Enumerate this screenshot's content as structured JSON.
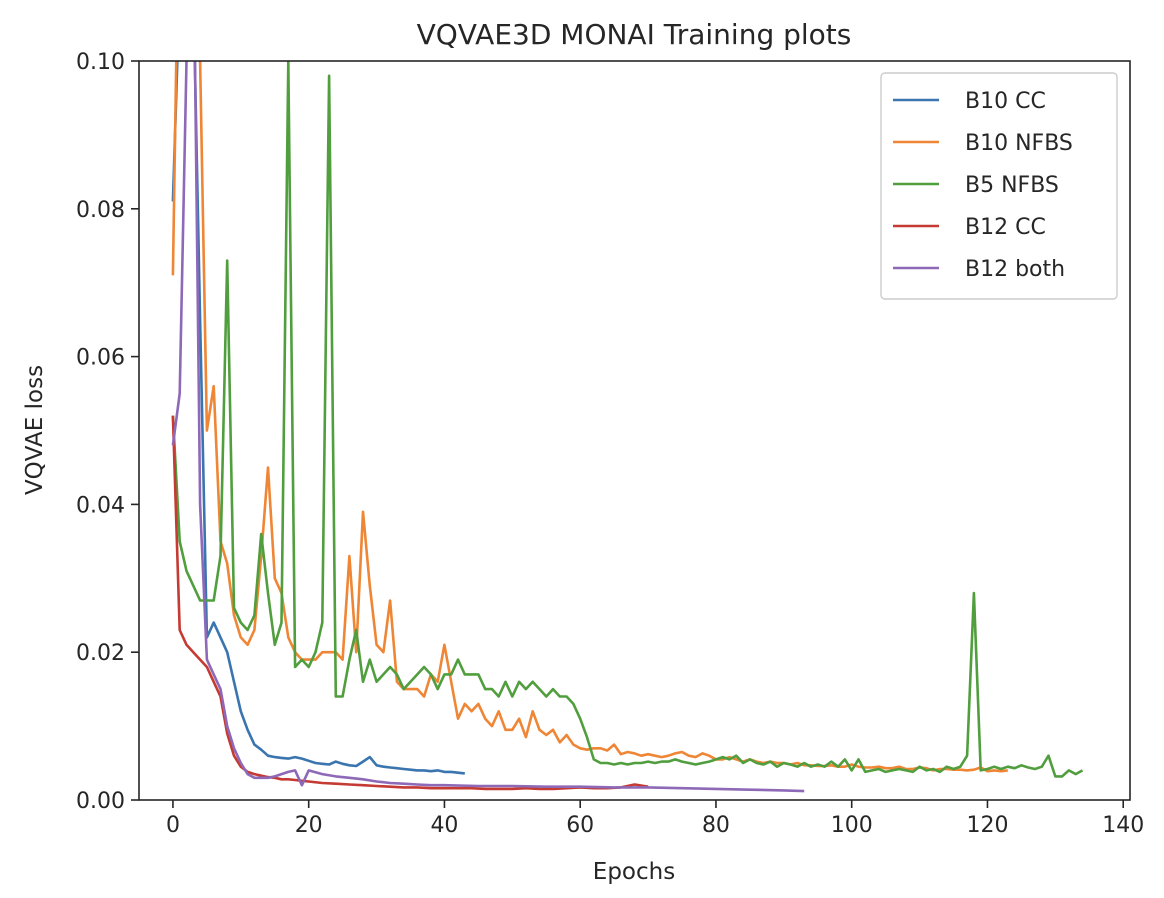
{
  "chart_data": {
    "type": "line",
    "title": "VQVAE3D MONAI Training plots",
    "xlabel": "Epochs",
    "ylabel": "VQVAE loss",
    "xlim": [
      -5,
      141
    ],
    "ylim": [
      0,
      0.1
    ],
    "xticks": [
      0,
      20,
      40,
      60,
      80,
      100,
      120,
      140
    ],
    "yticks": [
      0.0,
      0.02,
      0.04,
      0.06,
      0.08,
      0.1
    ],
    "ytick_labels": [
      "0.00",
      "0.02",
      "0.04",
      "0.06",
      "0.08",
      "0.10"
    ],
    "grid": false,
    "legend": "top-right",
    "series": [
      {
        "name": "B10 CC",
        "color": "#3a75af",
        "x": [
          0,
          1,
          2,
          3,
          4,
          5,
          6,
          7,
          8,
          9,
          10,
          11,
          12,
          13,
          14,
          15,
          16,
          17,
          18,
          19,
          20,
          21,
          22,
          23,
          24,
          25,
          26,
          27,
          28,
          29,
          30,
          31,
          32,
          33,
          34,
          35,
          36,
          37,
          38,
          39,
          40,
          41,
          42,
          43
        ],
        "y": [
          0.081,
          0.11,
          0.12,
          0.11,
          0.065,
          0.022,
          0.024,
          0.022,
          0.02,
          0.016,
          0.012,
          0.0095,
          0.0075,
          0.0068,
          0.006,
          0.0058,
          0.0057,
          0.0056,
          0.0058,
          0.0056,
          0.0053,
          0.005,
          0.0049,
          0.0048,
          0.0052,
          0.0049,
          0.0047,
          0.0046,
          0.0052,
          0.0058,
          0.0047,
          0.0045,
          0.0044,
          0.0043,
          0.0042,
          0.0041,
          0.004,
          0.004,
          0.0039,
          0.004,
          0.0038,
          0.0038,
          0.0037,
          0.0036
        ]
      },
      {
        "name": "B10 NFBS",
        "color": "#ef8636",
        "x": [
          0,
          1,
          2,
          3,
          4,
          5,
          6,
          7,
          8,
          9,
          10,
          11,
          12,
          13,
          14,
          15,
          16,
          17,
          18,
          19,
          20,
          21,
          22,
          23,
          24,
          25,
          26,
          27,
          28,
          29,
          30,
          31,
          32,
          33,
          34,
          35,
          36,
          37,
          38,
          39,
          40,
          41,
          42,
          43,
          44,
          45,
          46,
          47,
          48,
          49,
          50,
          51,
          52,
          53,
          54,
          55,
          56,
          57,
          58,
          59,
          60,
          61,
          62,
          63,
          64,
          65,
          66,
          67,
          68,
          69,
          70,
          71,
          72,
          73,
          74,
          75,
          76,
          77,
          78,
          79,
          80,
          81,
          82,
          83,
          84,
          85,
          86,
          87,
          88,
          89,
          90,
          91,
          92,
          93,
          94,
          95,
          96,
          97,
          98,
          99,
          100,
          101,
          102,
          103,
          104,
          105,
          106,
          107,
          108,
          109,
          110,
          111,
          112,
          113,
          114,
          115,
          116,
          117,
          118,
          119,
          120,
          121,
          122,
          123
        ],
        "y": [
          0.071,
          0.13,
          0.12,
          0.11,
          0.1,
          0.05,
          0.056,
          0.035,
          0.032,
          0.025,
          0.022,
          0.021,
          0.023,
          0.033,
          0.045,
          0.03,
          0.028,
          0.022,
          0.02,
          0.019,
          0.019,
          0.019,
          0.02,
          0.02,
          0.02,
          0.019,
          0.033,
          0.02,
          0.039,
          0.029,
          0.021,
          0.02,
          0.027,
          0.016,
          0.015,
          0.015,
          0.015,
          0.014,
          0.017,
          0.016,
          0.021,
          0.016,
          0.011,
          0.013,
          0.012,
          0.013,
          0.011,
          0.01,
          0.012,
          0.0095,
          0.0095,
          0.011,
          0.0085,
          0.012,
          0.0095,
          0.0088,
          0.0095,
          0.0078,
          0.0088,
          0.0075,
          0.007,
          0.0068,
          0.007,
          0.007,
          0.0067,
          0.0075,
          0.0062,
          0.0065,
          0.0063,
          0.006,
          0.0062,
          0.006,
          0.0058,
          0.006,
          0.0063,
          0.0065,
          0.006,
          0.0058,
          0.0063,
          0.006,
          0.0055,
          0.0055,
          0.0058,
          0.0055,
          0.0052,
          0.0055,
          0.0052,
          0.005,
          0.0052,
          0.005,
          0.005,
          0.0048,
          0.005,
          0.0047,
          0.0047,
          0.0046,
          0.0046,
          0.0047,
          0.0045,
          0.0045,
          0.0048,
          0.0045,
          0.0044,
          0.0044,
          0.0045,
          0.0043,
          0.0043,
          0.0045,
          0.0042,
          0.0042,
          0.0044,
          0.0043,
          0.004,
          0.0042,
          0.0042,
          0.0041,
          0.0041,
          0.004,
          0.0041,
          0.0044,
          0.0039,
          0.004,
          0.0039,
          0.004
        ]
      },
      {
        "name": "B5 NFBS",
        "color": "#519e3e",
        "x": [
          0,
          1,
          2,
          3,
          4,
          5,
          6,
          7,
          8,
          9,
          10,
          11,
          12,
          13,
          14,
          15,
          16,
          17,
          18,
          19,
          20,
          21,
          22,
          23,
          24,
          25,
          26,
          27,
          28,
          29,
          30,
          31,
          32,
          33,
          34,
          35,
          36,
          37,
          38,
          39,
          40,
          41,
          42,
          43,
          44,
          45,
          46,
          47,
          48,
          49,
          50,
          51,
          52,
          53,
          54,
          55,
          56,
          57,
          58,
          59,
          60,
          61,
          62,
          63,
          64,
          65,
          66,
          67,
          68,
          69,
          70,
          71,
          72,
          73,
          74,
          75,
          76,
          77,
          78,
          79,
          80,
          81,
          82,
          83,
          84,
          85,
          86,
          87,
          88,
          89,
          90,
          91,
          92,
          93,
          94,
          95,
          96,
          97,
          98,
          99,
          100,
          101,
          102,
          103,
          104,
          105,
          106,
          107,
          108,
          109,
          110,
          111,
          112,
          113,
          114,
          115,
          116,
          117,
          118,
          119,
          120,
          121,
          122,
          123,
          124,
          125,
          126,
          127,
          128,
          129,
          130,
          131,
          132,
          133,
          134
        ],
        "y": [
          0.052,
          0.035,
          0.031,
          0.029,
          0.027,
          0.027,
          0.027,
          0.033,
          0.073,
          0.026,
          0.024,
          0.023,
          0.025,
          0.036,
          0.028,
          0.021,
          0.024,
          0.1,
          0.018,
          0.019,
          0.018,
          0.02,
          0.024,
          0.098,
          0.014,
          0.014,
          0.019,
          0.023,
          0.016,
          0.019,
          0.016,
          0.017,
          0.018,
          0.017,
          0.015,
          0.016,
          0.017,
          0.018,
          0.017,
          0.015,
          0.017,
          0.017,
          0.019,
          0.017,
          0.017,
          0.017,
          0.015,
          0.015,
          0.014,
          0.016,
          0.014,
          0.016,
          0.015,
          0.016,
          0.015,
          0.014,
          0.015,
          0.014,
          0.014,
          0.013,
          0.011,
          0.0085,
          0.0055,
          0.005,
          0.005,
          0.0048,
          0.005,
          0.0048,
          0.005,
          0.005,
          0.0052,
          0.005,
          0.0052,
          0.0052,
          0.0055,
          0.0052,
          0.005,
          0.0048,
          0.005,
          0.0052,
          0.0055,
          0.0058,
          0.0055,
          0.006,
          0.005,
          0.0055,
          0.005,
          0.0048,
          0.0052,
          0.0045,
          0.005,
          0.0048,
          0.0045,
          0.005,
          0.0045,
          0.0048,
          0.0045,
          0.0052,
          0.0045,
          0.0055,
          0.004,
          0.0055,
          0.0038,
          0.004,
          0.0042,
          0.0038,
          0.004,
          0.0042,
          0.004,
          0.0038,
          0.0045,
          0.004,
          0.0042,
          0.0038,
          0.0045,
          0.0042,
          0.0045,
          0.006,
          0.028,
          0.004,
          0.0042,
          0.0045,
          0.0042,
          0.0045,
          0.0043,
          0.0047,
          0.0044,
          0.0042,
          0.0045,
          0.006,
          0.0032,
          0.0032,
          0.004,
          0.0035,
          0.004
        ]
      },
      {
        "name": "B12 CC",
        "color": "#c53a32",
        "x": [
          0,
          1,
          2,
          3,
          4,
          5,
          6,
          7,
          8,
          9,
          10,
          11,
          12,
          13,
          14,
          15,
          16,
          17,
          18,
          19,
          20,
          22,
          24,
          26,
          28,
          30,
          32,
          34,
          36,
          38,
          40,
          42,
          44,
          46,
          48,
          50,
          52,
          54,
          56,
          58,
          60,
          62,
          64,
          66,
          68,
          70
        ],
        "y": [
          0.052,
          0.023,
          0.021,
          0.02,
          0.019,
          0.018,
          0.016,
          0.014,
          0.009,
          0.006,
          0.0045,
          0.0038,
          0.0035,
          0.0033,
          0.0031,
          0.003,
          0.0028,
          0.0028,
          0.0027,
          0.0026,
          0.0025,
          0.0023,
          0.0022,
          0.0021,
          0.002,
          0.0019,
          0.0018,
          0.0017,
          0.0017,
          0.0016,
          0.0016,
          0.0016,
          0.0016,
          0.0015,
          0.0015,
          0.0015,
          0.0016,
          0.0015,
          0.0015,
          0.0016,
          0.0017,
          0.0016,
          0.0016,
          0.0017,
          0.0021,
          0.0018
        ]
      },
      {
        "name": "B12 both",
        "color": "#8d69b8",
        "x": [
          0,
          1,
          2,
          3,
          4,
          5,
          6,
          7,
          8,
          9,
          10,
          11,
          12,
          13,
          14,
          15,
          16,
          17,
          18,
          19,
          20,
          22,
          24,
          26,
          28,
          30,
          32,
          34,
          36,
          38,
          40,
          45,
          50,
          55,
          60,
          65,
          70,
          75,
          80,
          85,
          90,
          93
        ],
        "y": [
          0.048,
          0.055,
          0.1,
          0.12,
          0.04,
          0.019,
          0.017,
          0.015,
          0.01,
          0.007,
          0.005,
          0.0035,
          0.003,
          0.003,
          0.003,
          0.0032,
          0.0035,
          0.0038,
          0.004,
          0.002,
          0.004,
          0.0035,
          0.0032,
          0.003,
          0.0028,
          0.0025,
          0.0023,
          0.0022,
          0.0021,
          0.002,
          0.002,
          0.0019,
          0.0019,
          0.0018,
          0.0018,
          0.0017,
          0.0017,
          0.0016,
          0.0015,
          0.0014,
          0.0013,
          0.0012
        ]
      }
    ]
  }
}
